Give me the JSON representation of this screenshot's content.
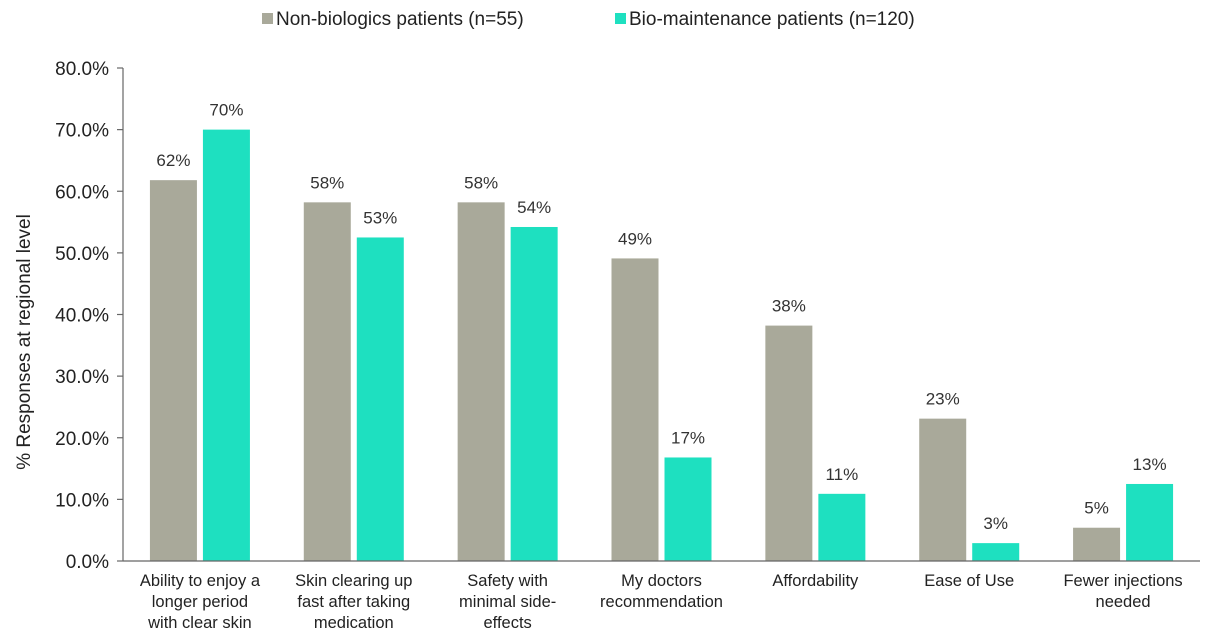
{
  "chart_data": {
    "type": "bar",
    "categories": [
      [
        "Ability to enjoy a",
        "longer period",
        "with clear skin"
      ],
      [
        "Skin clearing up",
        "fast after taking",
        "medication"
      ],
      [
        "Safety with",
        "minimal side-",
        "effects"
      ],
      [
        "My doctors",
        "recommendation"
      ],
      [
        "Affordability"
      ],
      [
        "Ease of Use"
      ],
      [
        "Fewer injections",
        "needed"
      ]
    ],
    "series": [
      {
        "name": "Non-biologics patients (n=55)",
        "color": "#a9a99a",
        "values": [
          61.8,
          58.2,
          58.2,
          49.1,
          38.2,
          23.1,
          5.4
        ],
        "labels": [
          "62%",
          "58%",
          "58%",
          "49%",
          "38%",
          "23%",
          "5%"
        ]
      },
      {
        "name": "Bio-maintenance patients (n=120)",
        "color": "#1ee0c0",
        "values": [
          70.0,
          52.5,
          54.2,
          16.8,
          10.9,
          2.9,
          12.5
        ],
        "labels": [
          "70%",
          "53%",
          "54%",
          "17%",
          "11%",
          "3%",
          "13%"
        ]
      }
    ],
    "ylabel": "% Responses at regional level",
    "ylim": [
      0,
      80
    ],
    "yticks": [
      0,
      10,
      20,
      30,
      40,
      50,
      60,
      70,
      80
    ],
    "ytick_labels": [
      "0.0%",
      "10.0%",
      "20.0%",
      "30.0%",
      "40.0%",
      "50.0%",
      "60.0%",
      "70.0%",
      "80.0%"
    ],
    "legend_position": "top",
    "grid": false
  }
}
